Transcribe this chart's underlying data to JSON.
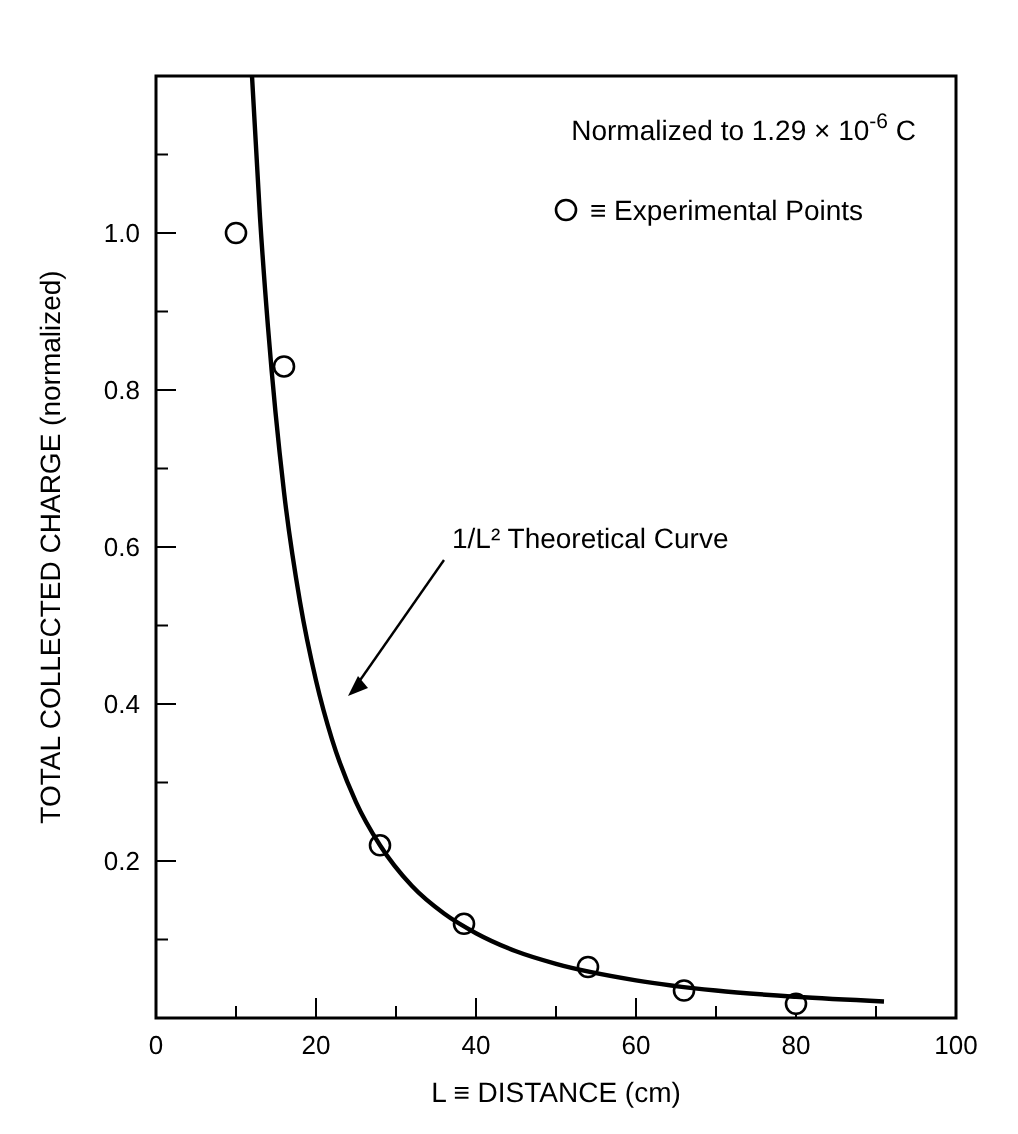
{
  "chart_data": {
    "type": "scatter",
    "ylabel": "TOTAL COLLECTED CHARGE (normalized)",
    "xlabel": "L ≡ DISTANCE (cm)",
    "xlim": [
      0,
      100
    ],
    "xticks": [
      0,
      20,
      40,
      60,
      80,
      100,
      {
        "value": 10,
        "label": null
      },
      {
        "value": 30,
        "label": null
      },
      {
        "value": 50,
        "label": null
      },
      {
        "value": 70,
        "label": null
      },
      {
        "value": 90,
        "label": null
      }
    ],
    "ylim": [
      0,
      1.2
    ],
    "yticks": [
      0.2,
      0.4,
      0.6,
      0.8,
      {
        "value": 1.0,
        "label": "1.0"
      },
      {
        "value": 0.1,
        "label": null
      },
      {
        "value": 0.3,
        "label": null
      },
      {
        "value": 0.5,
        "label": null
      },
      {
        "value": 0.7,
        "label": null
      },
      {
        "value": 0.9,
        "label": null
      },
      {
        "value": 1.1,
        "label": null
      }
    ],
    "grid": false,
    "legend": "top right",
    "series": [
      {
        "name": "≡ Experimental Points",
        "marker": "circle",
        "color": "#000000",
        "x": [
          10,
          16,
          28,
          38.5,
          54,
          66,
          80
        ],
        "values": [
          1.0,
          0.83,
          0.22,
          0.12,
          0.065,
          0.035,
          0.018
        ]
      },
      {
        "type": "line",
        "color": "#000000",
        "line_style": "solid",
        "x": [
          12,
          13,
          14,
          16,
          18,
          20,
          22,
          25,
          28,
          32,
          36,
          40,
          45,
          50,
          60,
          70,
          80,
          91
        ],
        "values": [
          1.2,
          1.02,
          0.88,
          0.67,
          0.53,
          0.43,
          0.355,
          0.275,
          0.22,
          0.168,
          0.133,
          0.108,
          0.085,
          0.069,
          0.048,
          0.035,
          0.027,
          0.021
        ]
      }
    ],
    "annotations": [
      "Normalized to 1.29 × 10$^{-6}$ C",
      "1/L² Theoretical Curve"
    ]
  }
}
